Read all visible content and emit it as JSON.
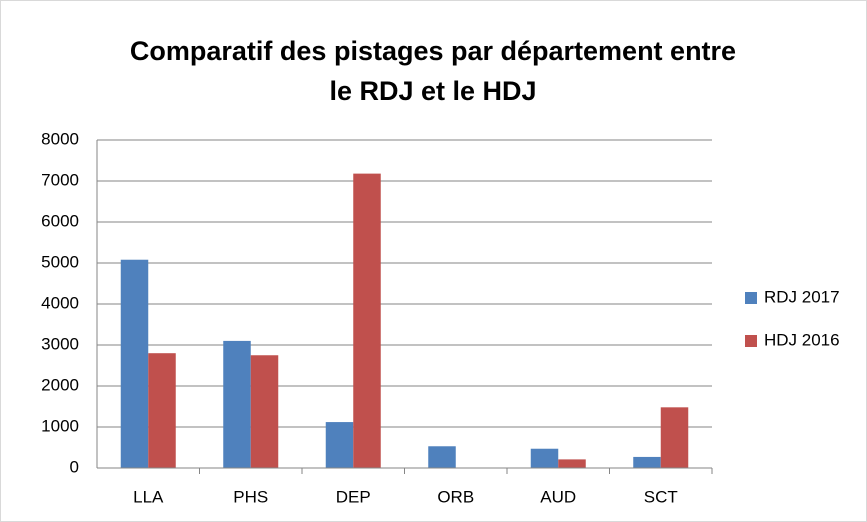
{
  "chart_data": {
    "type": "bar",
    "title": [
      "Comparatif des pistages par département entre",
      "le RDJ et le HDJ"
    ],
    "categories": [
      "LLA",
      "PHS",
      "DEP",
      "ORB",
      "AUD",
      "SCT"
    ],
    "series": [
      {
        "name": "RDJ 2017",
        "color": "#4f81bd",
        "values": [
          5080,
          3100,
          1120,
          530,
          470,
          270
        ]
      },
      {
        "name": "HDJ 2016",
        "color": "#c0504d",
        "values": [
          2800,
          2750,
          7180,
          0,
          210,
          1480
        ]
      }
    ],
    "ylim": [
      0,
      8000
    ],
    "yticks": [
      0,
      1000,
      2000,
      3000,
      4000,
      5000,
      6000,
      7000,
      8000
    ],
    "grid": true,
    "legend": "right"
  }
}
